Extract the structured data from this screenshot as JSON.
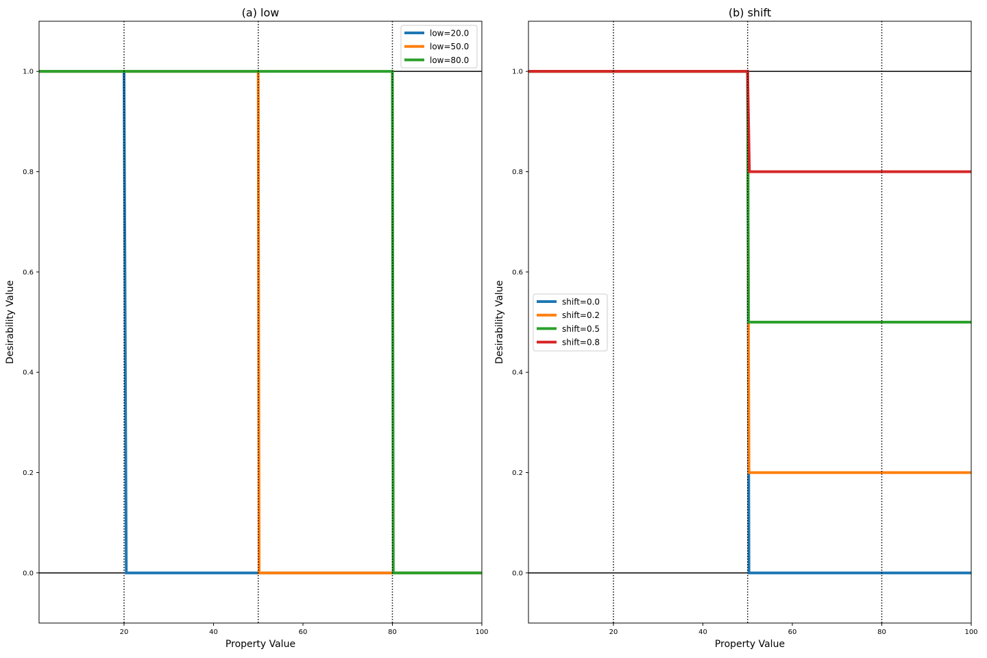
{
  "chart_data": [
    {
      "type": "line",
      "title": "(a) low",
      "xlabel": "Property Value",
      "ylabel": "Desirability Value",
      "xlim": [
        1,
        100
      ],
      "ylim": [
        -0.1,
        1.1
      ],
      "xticks": [
        20,
        40,
        60,
        80,
        100
      ],
      "yticks": [
        0.0,
        0.2,
        0.4,
        0.6,
        0.8,
        1.0
      ],
      "xtick_labels": [
        "20",
        "40",
        "60",
        "80",
        "100"
      ],
      "ytick_labels": [
        "0.0",
        "0.2",
        "0.4",
        "0.6",
        "0.8",
        "1.0"
      ],
      "hlines": [
        0.0,
        1.0
      ],
      "vlines": [
        20,
        50,
        80
      ],
      "legend_position": "top-right",
      "series": [
        {
          "name": "low=20.0",
          "color": "#1f77b4",
          "x": [
            1,
            20,
            20.5,
            100
          ],
          "y": [
            1,
            1,
            0,
            0
          ]
        },
        {
          "name": "low=50.0",
          "color": "#ff7f0e",
          "x": [
            1,
            50,
            50.2,
            100
          ],
          "y": [
            1,
            1,
            0,
            0
          ]
        },
        {
          "name": "low=80.0",
          "color": "#2ca02c",
          "x": [
            1,
            80,
            80.2,
            100
          ],
          "y": [
            1,
            1,
            0,
            0
          ]
        }
      ]
    },
    {
      "type": "line",
      "title": "(b) shift",
      "xlabel": "Property Value",
      "ylabel": "Desirability Value",
      "xlim": [
        1,
        100
      ],
      "ylim": [
        -0.1,
        1.1
      ],
      "xticks": [
        20,
        40,
        60,
        80,
        100
      ],
      "yticks": [
        0.0,
        0.2,
        0.4,
        0.6,
        0.8,
        1.0
      ],
      "xtick_labels": [
        "20",
        "40",
        "60",
        "80",
        "100"
      ],
      "ytick_labels": [
        "0.0",
        "0.2",
        "0.4",
        "0.6",
        "0.8",
        "1.0"
      ],
      "hlines": [
        0.0,
        1.0
      ],
      "vlines": [
        20,
        50,
        80
      ],
      "legend_position": "center-left",
      "series": [
        {
          "name": "shift=0.0",
          "color": "#1f77b4",
          "x": [
            1,
            50,
            50.3,
            100
          ],
          "y": [
            1,
            1,
            0,
            0
          ]
        },
        {
          "name": "shift=0.2",
          "color": "#ff7f0e",
          "x": [
            1,
            50,
            50.3,
            100
          ],
          "y": [
            1,
            1,
            0.2,
            0.2
          ]
        },
        {
          "name": "shift=0.5",
          "color": "#2ca02c",
          "x": [
            1,
            50,
            50.2,
            100
          ],
          "y": [
            1,
            1,
            0.5,
            0.5
          ]
        },
        {
          "name": "shift=0.8",
          "color": "#d62728",
          "x": [
            1,
            50,
            50.4,
            100
          ],
          "y": [
            1,
            1,
            0.8,
            0.8
          ]
        }
      ]
    }
  ]
}
